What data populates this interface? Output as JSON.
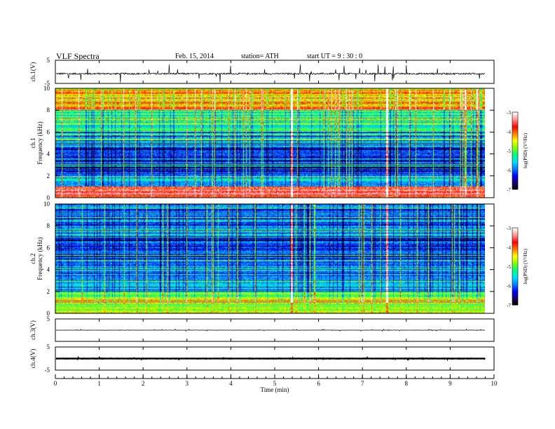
{
  "header": {
    "title": "VLF Spectra",
    "date": "Feb. 15, 2014",
    "station": "station= ATH",
    "start": "start  UT =   9  : 30 : 0"
  },
  "colors": {
    "frame": "#000000",
    "colormap": [
      "#000000",
      "#1a0066",
      "#0000ff",
      "#0080ff",
      "#00e0ff",
      "#00ff80",
      "#80ff00",
      "#ffff00",
      "#ff8000",
      "#ff0000",
      "#ff9090",
      "#ffffff"
    ]
  },
  "chart_data": [
    {
      "id": "ch1-waveform",
      "type": "line",
      "ylabel": "ch.1(V)",
      "ylim": [
        -5,
        5
      ],
      "yticks": [
        "5",
        "-5"
      ],
      "xlim": [
        0,
        10
      ],
      "baseline_v": -0.8,
      "noise_v": 0.35,
      "spike_v": 2.5,
      "series_end_min": 9.8
    },
    {
      "id": "ch1-spectrogram",
      "type": "heatmap",
      "ylabel": "ch.1\nFrequency (kHz)",
      "ylim": [
        0,
        10
      ],
      "yticks": [
        "0",
        "2",
        "4",
        "6",
        "8",
        "10"
      ],
      "xlim": [
        0,
        10
      ],
      "colorbar": {
        "label": "log(PSD) (V²/Hz)",
        "range": [
          -7,
          -3
        ],
        "ticks": [
          "-3",
          "-4",
          "-5",
          "-6",
          "-7"
        ]
      },
      "spectral_bands_khz": [
        {
          "from": 0,
          "to": 1,
          "level": -3.5
        },
        {
          "from": 1,
          "to": 2,
          "level": -5.6
        },
        {
          "from": 2,
          "to": 5,
          "level": -6.3
        },
        {
          "from": 5,
          "to": 6,
          "level": -5.9
        },
        {
          "from": 6,
          "to": 8,
          "level": -5.2
        },
        {
          "from": 8,
          "to": 10,
          "level": -4.3
        }
      ],
      "strong_events_min": [
        5.38,
        7.55
      ],
      "series_end_min": 9.8
    },
    {
      "id": "ch2-spectrogram",
      "type": "heatmap",
      "ylabel": "ch.2\nFrequency (kHz)",
      "ylim": [
        0,
        10
      ],
      "yticks": [
        "0",
        "2",
        "4",
        "6",
        "8",
        "10"
      ],
      "xlim": [
        0,
        10
      ],
      "colorbar": {
        "label": "log(PSD) (V²/Hz)",
        "range": [
          -7,
          -3
        ],
        "ticks": [
          "-3",
          "-4",
          "-5",
          "-6",
          "-7"
        ]
      },
      "spectral_bands_khz": [
        {
          "from": 0,
          "to": 2,
          "level": -4.8
        },
        {
          "from": 2,
          "to": 5,
          "level": -5.8
        },
        {
          "from": 5,
          "to": 7,
          "level": -6.2
        },
        {
          "from": 7,
          "to": 10,
          "level": -6.0
        }
      ],
      "strong_events_min": [
        5.38,
        7.55
      ],
      "series_end_min": 9.8
    },
    {
      "id": "ch3-waveform",
      "type": "line",
      "ylabel": "ch.3(V)",
      "ylim": [
        -5,
        5
      ],
      "yticks": [
        "5"
      ],
      "xlim": [
        0,
        10
      ],
      "baseline_v": 0,
      "noise_v": 0.05,
      "spike_v": 0.3,
      "series_end_min": 9.8
    },
    {
      "id": "ch4-waveform",
      "type": "line",
      "ylabel": "ch.4(V)",
      "ylim": [
        -5,
        5
      ],
      "yticks": [
        "5",
        "-5"
      ],
      "xlim": [
        0,
        10
      ],
      "baseline_v": 0,
      "noise_v": 0.25,
      "spike_v": 0.4,
      "series_end_min": 9.8
    }
  ],
  "xaxis": {
    "label": "Time  (min)",
    "ticks": [
      "0",
      "1",
      "2",
      "3",
      "4",
      "5",
      "6",
      "7",
      "8",
      "9",
      "10"
    ]
  }
}
